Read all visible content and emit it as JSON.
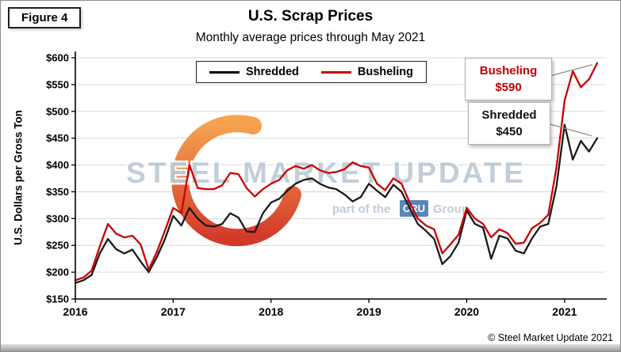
{
  "figure_label": "Figure 4",
  "header": {
    "title": "U.S. Scrap Prices",
    "subtitle": "Monthly average prices through May 2021"
  },
  "y_axis_label": "U.S. Dollars per Gross Ton",
  "copyright": "© Steel Market Update 2021",
  "watermark": {
    "line1": "STEEL MARKET UPDATE",
    "line2_prefix": "part of the",
    "line2_badge": "CRU",
    "line2_suffix": "Group"
  },
  "legend": {
    "items": [
      {
        "label": "Shredded",
        "color": "#1a1a1a"
      },
      {
        "label": "Busheling",
        "color": "#cc0000"
      }
    ]
  },
  "annotations": {
    "busheling": {
      "label": "Busheling",
      "value": "$590",
      "color": "#c00000"
    },
    "shredded": {
      "label": "Shredded",
      "value": "$450",
      "color": "#111111"
    }
  },
  "chart_data": {
    "type": "line",
    "title": "U.S. Scrap Prices",
    "subtitle": "Monthly average prices through May 2021",
    "ylabel": "U.S. Dollars per Gross Ton",
    "ylim": [
      150,
      600
    ],
    "y_ticks": [
      150,
      200,
      250,
      300,
      350,
      400,
      450,
      500,
      550,
      600
    ],
    "y_tick_labels": [
      "$150",
      "$200",
      "$250",
      "$300",
      "$350",
      "$400",
      "$450",
      "$500",
      "$550",
      "$600"
    ],
    "x_tick_labels": [
      "2016",
      "2017",
      "2018",
      "2019",
      "2020",
      "2021"
    ],
    "x_tick_month_indices": [
      0,
      12,
      24,
      36,
      48,
      60
    ],
    "x_range": "Jan 2016 - May 2021 (monthly)",
    "grid": "horizontal",
    "legend_position": "top-center",
    "series": [
      {
        "name": "Shredded",
        "color": "#1a1a1a",
        "values": [
          180,
          185,
          195,
          235,
          262,
          243,
          235,
          242,
          220,
          200,
          228,
          262,
          305,
          287,
          320,
          300,
          287,
          285,
          290,
          310,
          302,
          276,
          275,
          310,
          330,
          337,
          352,
          365,
          372,
          375,
          365,
          358,
          355,
          345,
          332,
          340,
          365,
          352,
          340,
          363,
          350,
          320,
          290,
          277,
          262,
          215,
          230,
          255,
          315,
          290,
          283,
          225,
          268,
          263,
          240,
          235,
          263,
          285,
          290,
          360,
          475,
          410,
          445,
          425,
          450
        ]
      },
      {
        "name": "Busheling",
        "color": "#cc0000",
        "values": [
          185,
          190,
          203,
          248,
          290,
          272,
          265,
          268,
          252,
          205,
          238,
          278,
          320,
          310,
          400,
          357,
          355,
          355,
          362,
          385,
          383,
          357,
          341,
          355,
          365,
          372,
          390,
          398,
          393,
          400,
          390,
          385,
          387,
          392,
          405,
          398,
          395,
          365,
          353,
          375,
          365,
          330,
          300,
          287,
          280,
          235,
          252,
          270,
          320,
          300,
          290,
          265,
          280,
          273,
          253,
          255,
          282,
          292,
          307,
          395,
          520,
          575,
          545,
          560,
          590
        ]
      }
    ]
  }
}
